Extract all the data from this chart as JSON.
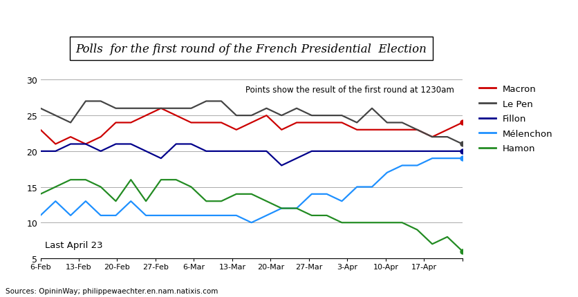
{
  "title": "Polls  for the first round of the French Presidential  Election",
  "subtitle": "Points show the result of the first round at 1230am",
  "annotation": "Last April 23",
  "source": "Sources: OpininWay; philippewaechter.en.nam.natixis.com",
  "x_labels": [
    "6-Feb",
    "13-Feb",
    "20-Feb",
    "27-Feb",
    "6-Mar",
    "13-Mar",
    "20-Mar",
    "27-Mar",
    "3-Apr",
    "10-Apr",
    "17-Apr",
    ""
  ],
  "ylim": [
    5,
    30
  ],
  "yticks": [
    5,
    10,
    15,
    20,
    25,
    30
  ],
  "legend_names": [
    "Macron",
    "Le Pen",
    "Fillon",
    "Mélenchon",
    "Hamon"
  ],
  "series": {
    "Macron": {
      "color": "#cc0000",
      "values": [
        23,
        21,
        22,
        21,
        22,
        24,
        24,
        25,
        26,
        25,
        24,
        24,
        24,
        23,
        24,
        25,
        23,
        24,
        24,
        24,
        24,
        23,
        23,
        23,
        23,
        23,
        22,
        23,
        24
      ]
    },
    "Le Pen": {
      "color": "#444444",
      "values": [
        26,
        25,
        24,
        27,
        27,
        26,
        26,
        26,
        26,
        26,
        26,
        27,
        27,
        25,
        25,
        26,
        25,
        26,
        25,
        25,
        25,
        24,
        26,
        24,
        24,
        23,
        22,
        22,
        21
      ]
    },
    "Fillon": {
      "color": "#00008B",
      "values": [
        20,
        20,
        21,
        21,
        20,
        21,
        21,
        20,
        19,
        21,
        21,
        20,
        20,
        20,
        20,
        20,
        18,
        19,
        20,
        20,
        20,
        20,
        20,
        20,
        20,
        20,
        20,
        20,
        20
      ]
    },
    "Melenchon": {
      "color": "#1E90FF",
      "values": [
        11,
        13,
        11,
        13,
        11,
        11,
        13,
        11,
        11,
        11,
        11,
        11,
        11,
        11,
        10,
        11,
        12,
        12,
        14,
        14,
        13,
        15,
        15,
        17,
        18,
        18,
        19,
        19,
        19
      ]
    },
    "Hamon": {
      "color": "#228B22",
      "values": [
        14,
        15,
        16,
        16,
        15,
        13,
        16,
        13,
        16,
        16,
        15,
        13,
        13,
        14,
        14,
        13,
        12,
        12,
        11,
        11,
        10,
        10,
        10,
        10,
        10,
        9,
        7,
        8,
        6
      ]
    }
  }
}
